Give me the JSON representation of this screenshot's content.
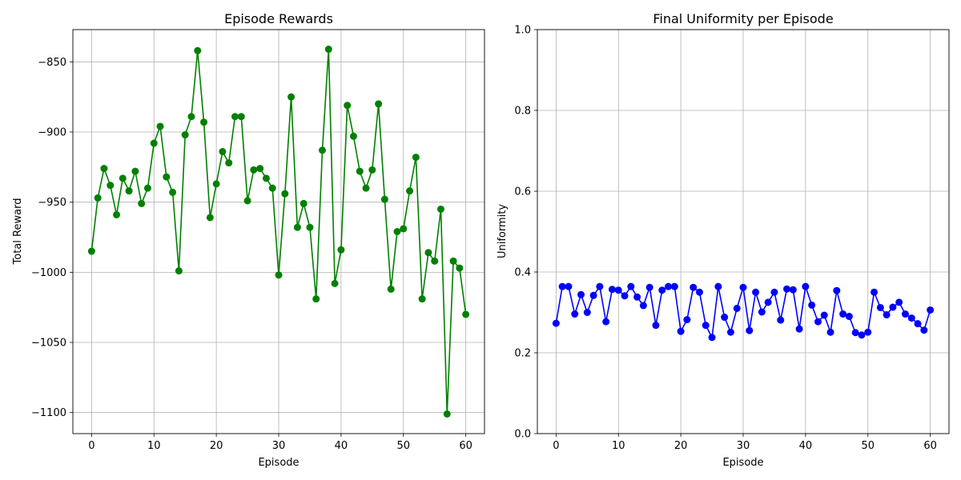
{
  "chart_data": [
    {
      "type": "line",
      "title": "Episode Rewards",
      "xlabel": "Episode",
      "ylabel": "Total Reward",
      "xlim": [
        -3,
        63
      ],
      "ylim": [
        -1115,
        -827
      ],
      "xticks": [
        0,
        10,
        20,
        30,
        40,
        50,
        60
      ],
      "xtick_labels": [
        "0",
        "10",
        "20",
        "30",
        "40",
        "50",
        "60"
      ],
      "yticks": [
        -1100,
        -1050,
        -1000,
        -950,
        -900,
        -850
      ],
      "ytick_labels": [
        "−1100",
        "−1050",
        "−1000",
        "−950",
        "−900",
        "−850"
      ],
      "grid": true,
      "color": "#008000",
      "marker": "circle",
      "x": [
        0,
        1,
        2,
        3,
        4,
        5,
        6,
        7,
        8,
        9,
        10,
        11,
        12,
        13,
        14,
        15,
        16,
        17,
        18,
        19,
        20,
        21,
        22,
        23,
        24,
        25,
        26,
        27,
        28,
        29,
        30,
        31,
        32,
        33,
        34,
        35,
        36,
        37,
        38,
        39,
        40,
        41,
        42,
        43,
        44,
        45,
        46,
        47,
        48,
        49,
        50,
        51,
        52,
        53,
        54,
        55,
        56,
        57,
        58,
        59,
        60
      ],
      "y": [
        -985,
        -947,
        -926,
        -938,
        -959,
        -933,
        -942,
        -928,
        -951,
        -940,
        -908,
        -896,
        -932,
        -943,
        -999,
        -902,
        -889,
        -842,
        -893,
        -961,
        -937,
        -914,
        -922,
        -889,
        -889,
        -949,
        -927,
        -926,
        -933,
        -940,
        -1002,
        -944,
        -875,
        -968,
        -951,
        -968,
        -1019,
        -913,
        -841,
        -1008,
        -984,
        -881,
        -903,
        -928,
        -940,
        -927,
        -880,
        -948,
        -1012,
        -971,
        -969,
        -942,
        -918,
        -1019,
        -986,
        -992,
        -955,
        -1101,
        -992,
        -997,
        -1030
      ]
    },
    {
      "type": "line",
      "title": "Final Uniformity per Episode",
      "xlabel": "Episode",
      "ylabel": "Uniformity",
      "xlim": [
        -3,
        63
      ],
      "ylim": [
        0.0,
        1.0
      ],
      "xticks": [
        0,
        10,
        20,
        30,
        40,
        50,
        60
      ],
      "xtick_labels": [
        "0",
        "10",
        "20",
        "30",
        "40",
        "50",
        "60"
      ],
      "yticks": [
        0.0,
        0.2,
        0.4,
        0.6,
        0.8,
        1.0
      ],
      "ytick_labels": [
        "0.0",
        "0.2",
        "0.4",
        "0.6",
        "0.8",
        "1.0"
      ],
      "grid": true,
      "color": "#0000ff",
      "marker": "circle",
      "x": [
        0,
        1,
        2,
        3,
        4,
        5,
        6,
        7,
        8,
        9,
        10,
        11,
        12,
        13,
        14,
        15,
        16,
        17,
        18,
        19,
        20,
        21,
        22,
        23,
        24,
        25,
        26,
        27,
        28,
        29,
        30,
        31,
        32,
        33,
        34,
        35,
        36,
        37,
        38,
        39,
        40,
        41,
        42,
        43,
        44,
        45,
        46,
        47,
        48,
        49,
        50,
        51,
        52,
        53,
        54,
        55,
        56,
        57,
        58,
        59,
        60
      ],
      "y": [
        0.273,
        0.364,
        0.364,
        0.296,
        0.344,
        0.3,
        0.342,
        0.364,
        0.277,
        0.357,
        0.355,
        0.341,
        0.364,
        0.338,
        0.317,
        0.362,
        0.268,
        0.355,
        0.364,
        0.364,
        0.253,
        0.282,
        0.362,
        0.35,
        0.268,
        0.238,
        0.364,
        0.288,
        0.251,
        0.31,
        0.362,
        0.255,
        0.35,
        0.301,
        0.325,
        0.35,
        0.281,
        0.358,
        0.356,
        0.259,
        0.364,
        0.318,
        0.277,
        0.293,
        0.251,
        0.354,
        0.296,
        0.29,
        0.25,
        0.244,
        0.251,
        0.35,
        0.312,
        0.294,
        0.313,
        0.325,
        0.296,
        0.286,
        0.272,
        0.256,
        0.306
      ]
    }
  ]
}
